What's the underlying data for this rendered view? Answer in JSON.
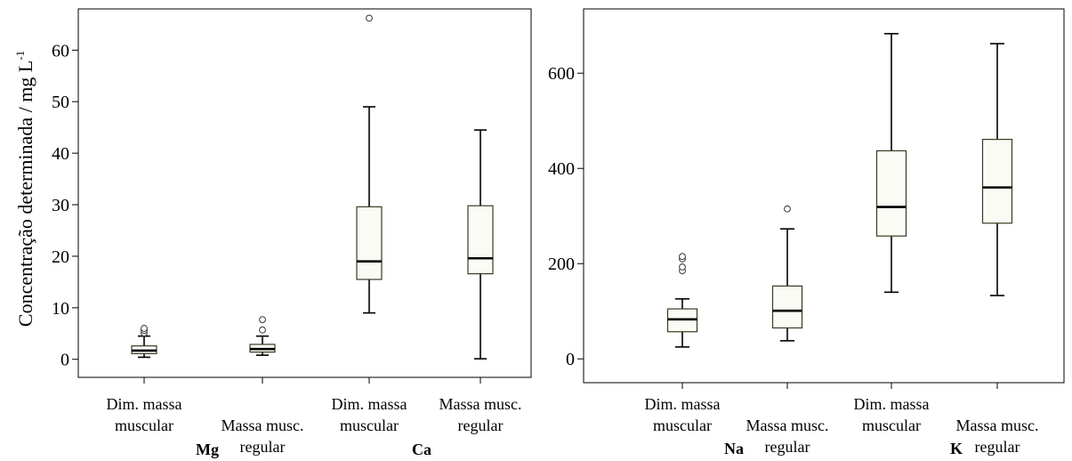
{
  "ylabel": "Concentração determinada / mg L",
  "ylabel_sup": "-1",
  "chart_data": [
    {
      "type": "boxplot",
      "panel": "left",
      "ylim": [
        -3.5,
        68
      ],
      "yticks": [
        0,
        10,
        20,
        30,
        40,
        50,
        60
      ],
      "tick_labels": [
        "0",
        "10",
        "20",
        "30",
        "40",
        "50",
        "60"
      ],
      "groups": [
        {
          "label": "Mg",
          "categories": [
            "Dim. massa\nmuscular",
            "Massa musc.\nregular"
          ]
        },
        {
          "label": "Ca",
          "categories": [
            "Dim. massa\nmuscular",
            "Massa musc.\nregular"
          ]
        }
      ],
      "boxes": [
        {
          "group": "Mg",
          "category": "Dim. massa muscular",
          "whisker_low": 0.4,
          "q1": 1.1,
          "median": 1.7,
          "q3": 2.6,
          "whisker_high": 4.5,
          "outliers": [
            5.1,
            5.6,
            6.0
          ]
        },
        {
          "group": "Mg",
          "category": "Massa musc. regular",
          "whisker_low": 0.8,
          "q1": 1.4,
          "median": 2.0,
          "q3": 2.9,
          "whisker_high": 4.5,
          "outliers": [
            5.7,
            7.7
          ]
        },
        {
          "group": "Ca",
          "category": "Dim. massa muscular",
          "whisker_low": 9.0,
          "q1": 15.5,
          "median": 19.0,
          "q3": 29.6,
          "whisker_high": 49.0,
          "outliers": [
            66.2
          ]
        },
        {
          "group": "Ca",
          "category": "Massa musc. regular",
          "whisker_low": 0.1,
          "q1": 16.6,
          "median": 19.6,
          "q3": 29.8,
          "whisker_high": 44.5,
          "outliers": []
        }
      ]
    },
    {
      "type": "boxplot",
      "panel": "right",
      "ylim": [
        -50,
        735
      ],
      "yticks": [
        0,
        200,
        400,
        600
      ],
      "tick_labels": [
        "0",
        "200",
        "400",
        "600"
      ],
      "groups": [
        {
          "label": "Na",
          "categories": [
            "Dim. massa\nmuscular",
            "Massa musc.\nregular"
          ]
        },
        {
          "label": "K",
          "categories": [
            "Dim. massa\nmuscular",
            "Massa musc.\nregular"
          ]
        }
      ],
      "boxes": [
        {
          "group": "Na",
          "category": "Dim. massa muscular",
          "whisker_low": 25,
          "q1": 57,
          "median": 83,
          "q3": 105,
          "whisker_high": 126,
          "outliers": [
            185,
            193,
            210,
            215
          ]
        },
        {
          "group": "Na",
          "category": "Massa musc. regular",
          "whisker_low": 38,
          "q1": 65,
          "median": 101,
          "q3": 153,
          "whisker_high": 273,
          "outliers": [
            315
          ]
        },
        {
          "group": "K",
          "category": "Dim. massa muscular",
          "whisker_low": 140,
          "q1": 258,
          "median": 319,
          "q3": 437,
          "whisker_high": 683,
          "outliers": []
        },
        {
          "group": "K",
          "category": "Massa musc. regular",
          "whisker_low": 133,
          "q1": 285,
          "median": 360,
          "q3": 461,
          "whisker_high": 662,
          "outliers": []
        }
      ]
    }
  ]
}
